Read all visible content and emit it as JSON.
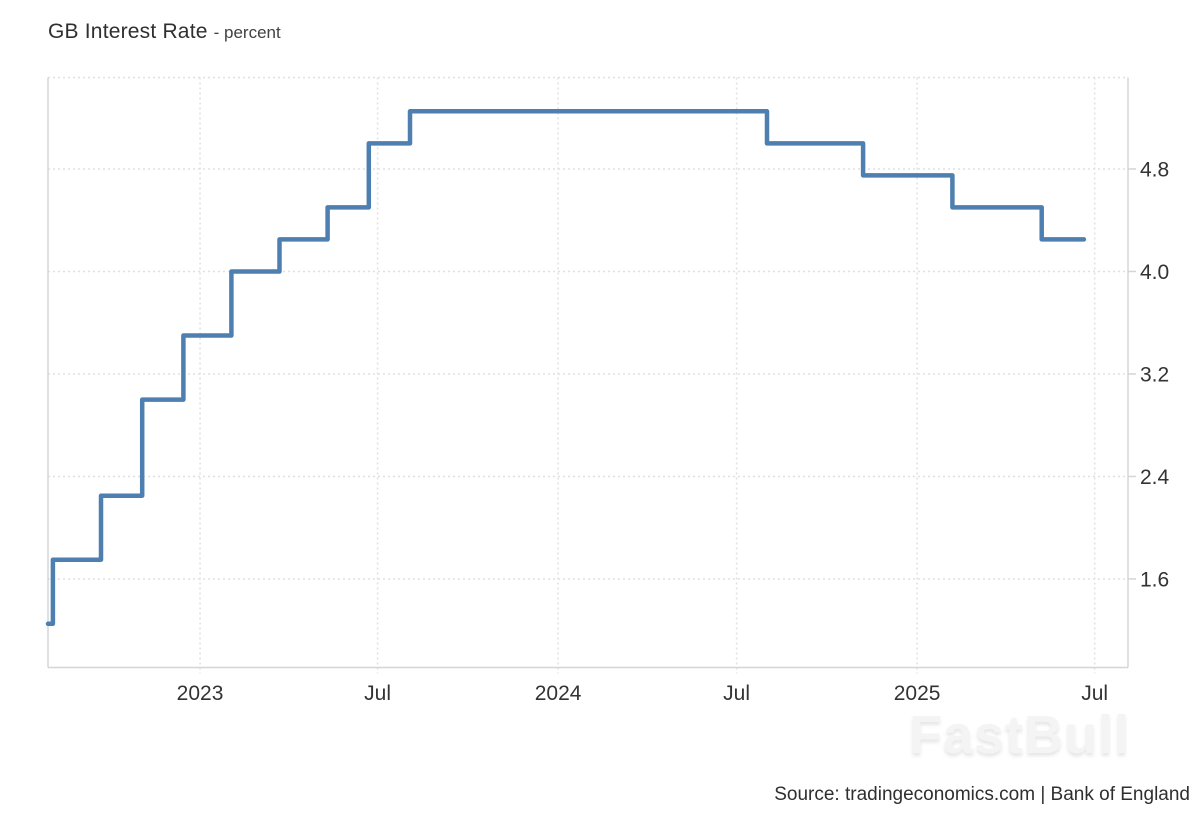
{
  "header": {
    "title": "GB Interest Rate",
    "subtitle": "- percent"
  },
  "watermark": "FastBull",
  "footer": {
    "source": "Source: tradingeconomics.com | Bank of England"
  },
  "colors": {
    "line": "#4e7fb1",
    "grid": "#e0e0e0",
    "border": "#d5d5d5",
    "tick_text": "#333333"
  },
  "chart_data": {
    "type": "line",
    "subtype": "step-after",
    "title": "GB Interest Rate",
    "ylabel": "percent",
    "xlabel": "",
    "grid": true,
    "legend": false,
    "line_color": "#4e7fb1",
    "series": [
      {
        "name": "GB Interest Rate",
        "points": [
          [
            "2022-07-30",
            1.25
          ],
          [
            "2022-08-04",
            1.75
          ],
          [
            "2022-09-22",
            2.25
          ],
          [
            "2022-11-03",
            3.0
          ],
          [
            "2022-12-15",
            3.5
          ],
          [
            "2023-02-02",
            4.0
          ],
          [
            "2023-03-23",
            4.25
          ],
          [
            "2023-05-11",
            4.5
          ],
          [
            "2023-06-22",
            5.0
          ],
          [
            "2023-08-03",
            5.25
          ],
          [
            "2024-08-01",
            5.0
          ],
          [
            "2024-11-07",
            4.75
          ],
          [
            "2025-02-06",
            4.5
          ],
          [
            "2025-05-08",
            4.25
          ],
          [
            "2025-06-20",
            4.25
          ]
        ]
      }
    ],
    "x_ticks": [
      {
        "date": "2023-01-01",
        "label": "2023"
      },
      {
        "date": "2023-07-01",
        "label": "Jul"
      },
      {
        "date": "2024-01-01",
        "label": "2024"
      },
      {
        "date": "2024-07-01",
        "label": "Jul"
      },
      {
        "date": "2025-01-01",
        "label": "2025"
      },
      {
        "date": "2025-07-01",
        "label": "Jul"
      }
    ],
    "y_ticks": [
      1.6,
      2.4,
      3.2,
      4.0,
      4.8
    ],
    "xlim": [
      "2022-07-30",
      "2025-08-04"
    ],
    "ylim": [
      0.909,
      5.514
    ]
  }
}
